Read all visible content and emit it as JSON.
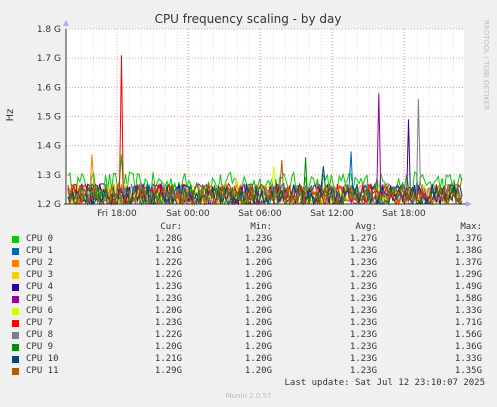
{
  "chart_data": {
    "type": "line",
    "title": "CPU frequency scaling - by day",
    "ylabel": "Hz",
    "ylim": [
      1.2,
      1.8
    ],
    "yticks": [
      "1.2 G",
      "1.3 G",
      "1.4 G",
      "1.5 G",
      "1.6 G",
      "1.7 G",
      "1.8 G"
    ],
    "xticks": [
      "Fri 18:00",
      "Sat 00:00",
      "Sat 06:00",
      "Sat 12:00",
      "Sat 18:00"
    ],
    "grid": true,
    "side_label": "RRDTOOL / TOBI OETIKER",
    "series": [
      {
        "name": "CPU 0",
        "color": "#00cc00",
        "cur": "1.28G",
        "min": "1.23G",
        "avg": "1.27G",
        "max": "1.37G"
      },
      {
        "name": "CPU 1",
        "color": "#0066b3",
        "cur": "1.21G",
        "min": "1.20G",
        "avg": "1.23G",
        "max": "1.38G"
      },
      {
        "name": "CPU 2",
        "color": "#ff8000",
        "cur": "1.22G",
        "min": "1.20G",
        "avg": "1.23G",
        "max": "1.37G"
      },
      {
        "name": "CPU 3",
        "color": "#ffcc00",
        "cur": "1.22G",
        "min": "1.20G",
        "avg": "1.22G",
        "max": "1.29G"
      },
      {
        "name": "CPU 4",
        "color": "#330099",
        "cur": "1.23G",
        "min": "1.20G",
        "avg": "1.23G",
        "max": "1.49G"
      },
      {
        "name": "CPU 5",
        "color": "#990099",
        "cur": "1.23G",
        "min": "1.20G",
        "avg": "1.23G",
        "max": "1.58G"
      },
      {
        "name": "CPU 6",
        "color": "#ccff00",
        "cur": "1.20G",
        "min": "1.20G",
        "avg": "1.23G",
        "max": "1.33G"
      },
      {
        "name": "CPU 7",
        "color": "#ff0000",
        "cur": "1.23G",
        "min": "1.20G",
        "avg": "1.23G",
        "max": "1.71G"
      },
      {
        "name": "CPU 8",
        "color": "#808080",
        "cur": "1.22G",
        "min": "1.20G",
        "avg": "1.23G",
        "max": "1.56G"
      },
      {
        "name": "CPU 9",
        "color": "#008f00",
        "cur": "1.20G",
        "min": "1.20G",
        "avg": "1.23G",
        "max": "1.36G"
      },
      {
        "name": "CPU 10",
        "color": "#00487d",
        "cur": "1.21G",
        "min": "1.20G",
        "avg": "1.23G",
        "max": "1.33G"
      },
      {
        "name": "CPU 11",
        "color": "#b35a00",
        "cur": "1.29G",
        "min": "1.20G",
        "avg": "1.23G",
        "max": "1.35G"
      }
    ]
  },
  "legend_headers": {
    "cur": "Cur:",
    "min": "Min:",
    "avg": "Avg:",
    "max": "Max:"
  },
  "last_update": "Last update: Sat Jul 12 23:10:07 2025",
  "munin_version": "Munin 2.0.57"
}
